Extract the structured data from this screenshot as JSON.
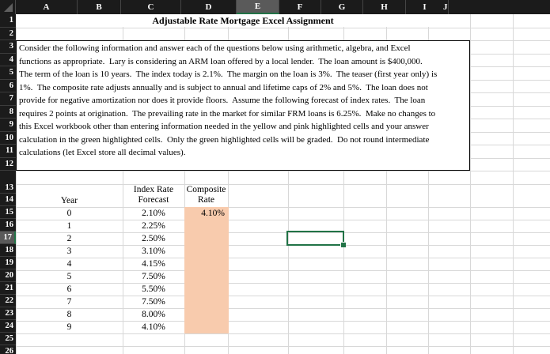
{
  "spreadsheet": {
    "title": "Adjustable Rate Mortgage Excel Assignment",
    "column_headers": [
      "A",
      "B",
      "C",
      "D",
      "E",
      "F",
      "G",
      "H",
      "I",
      "J"
    ],
    "row_headers": [
      "1",
      "2",
      "3",
      "4",
      "5",
      "6",
      "7",
      "8",
      "9",
      "10",
      "11",
      "12",
      "13",
      "14",
      "15",
      "16",
      "17",
      "18",
      "19",
      "20",
      "21",
      "22",
      "23",
      "24",
      "25",
      "26"
    ],
    "active_cell": {
      "column": "E",
      "row": "17"
    },
    "instructions": {
      "lines": [
        "Consider the following information and answer each of the questions below using arithmetic, algebra, and Excel",
        "functions as appropriate.  Lary is considering an ARM loan offered by a local lender.  The loan amount is $400,000.",
        "The term of the loan is 10 years.  The index today is 2.1%.  The margin on the loan is 3%.  The teaser (first year only) is",
        "1%.  The composite rate adjusts annually and is subject to annual and lifetime caps of 2% and 5%.  The loan does not",
        "provide for negative amortization nor does it provide floors.  Assume the following forecast of index rates.  The loan",
        "requires 2 points at origination.  The prevailing rate in the market for similar FRM loans is 6.25%.  Make no changes to",
        "this Excel workbook other than entering information needed in the yellow and pink highlighted cells and your answer",
        "calculation in the green highlighted cells.  Only the green highlighted cells will be graded.  Do not round intermediate",
        "calculations (let Excel store all decimal values)."
      ]
    },
    "forecast_table": {
      "year_header": "Year",
      "index_header": "Index Rate Forecast",
      "composite_header": "Composite Rate",
      "rows": [
        {
          "year": "0",
          "index_rate": "2.10%",
          "composite_rate": "4.10%"
        },
        {
          "year": "1",
          "index_rate": "2.25%",
          "composite_rate": ""
        },
        {
          "year": "2",
          "index_rate": "2.50%",
          "composite_rate": ""
        },
        {
          "year": "3",
          "index_rate": "3.10%",
          "composite_rate": ""
        },
        {
          "year": "4",
          "index_rate": "4.15%",
          "composite_rate": ""
        },
        {
          "year": "5",
          "index_rate": "7.50%",
          "composite_rate": ""
        },
        {
          "year": "6",
          "index_rate": "5.50%",
          "composite_rate": ""
        },
        {
          "year": "7",
          "index_rate": "7.50%",
          "composite_rate": ""
        },
        {
          "year": "8",
          "index_rate": "8.00%",
          "composite_rate": ""
        },
        {
          "year": "9",
          "index_rate": "4.10%",
          "composite_rate": ""
        }
      ]
    },
    "colors": {
      "highlight_fill": "#F8CBAD",
      "selection_green": "#217346",
      "header_bg": "#1B1B1B",
      "header_selected_bg": "#5A5A5A",
      "gridline": "#D8D8D8"
    }
  }
}
